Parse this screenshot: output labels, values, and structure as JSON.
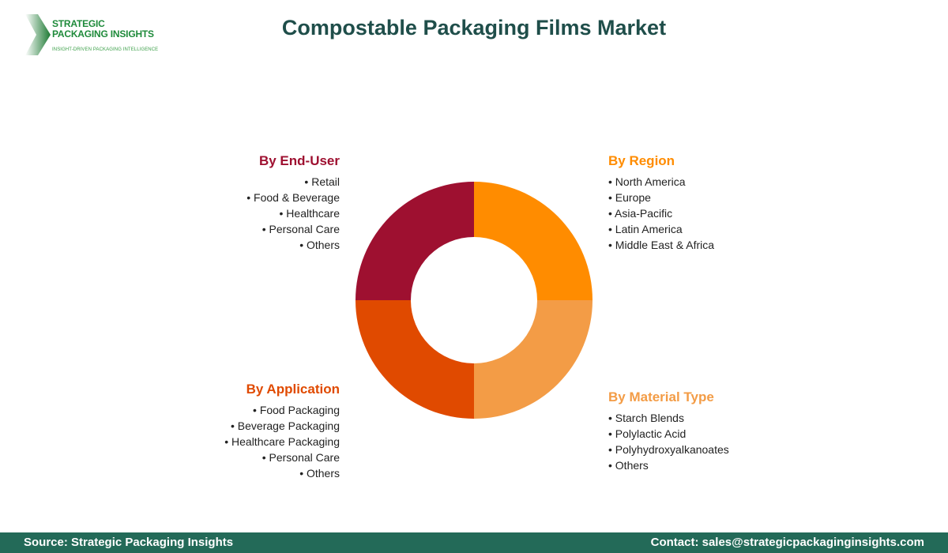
{
  "header": {
    "title": "Compostable Packaging Films Market"
  },
  "logo": {
    "line1": "STRATEGIC",
    "line2": "PACKAGING INSIGHTS",
    "tagline": "INSIGHT-DRIVEN PACKAGING INTELLIGENCE"
  },
  "segments": {
    "end_user": {
      "title": "By End-User",
      "color": "#9E1030",
      "items": [
        "Retail",
        "Food & Beverage",
        "Healthcare",
        "Personal Care",
        "Others"
      ]
    },
    "region": {
      "title": "By Region",
      "color": "#FF8C00",
      "items": [
        "North America",
        "Europe",
        "Asia-Pacific",
        "Latin America",
        "Middle East & Africa"
      ]
    },
    "application": {
      "title": "By Application",
      "color": "#E04A00",
      "items": [
        "Food Packaging",
        "Beverage Packaging",
        "Healthcare Packaging",
        "Personal Care",
        "Others"
      ]
    },
    "material": {
      "title": "By Material Type",
      "color": "#F39C46",
      "items": [
        "Starch Blends",
        "Polylactic Acid",
        "Polyhydroxyalkanoates",
        "Others"
      ]
    }
  },
  "footer": {
    "source": "Source: Strategic Packaging Insights",
    "contact": "Contact: sales@strategicpackaginginsights.com"
  }
}
